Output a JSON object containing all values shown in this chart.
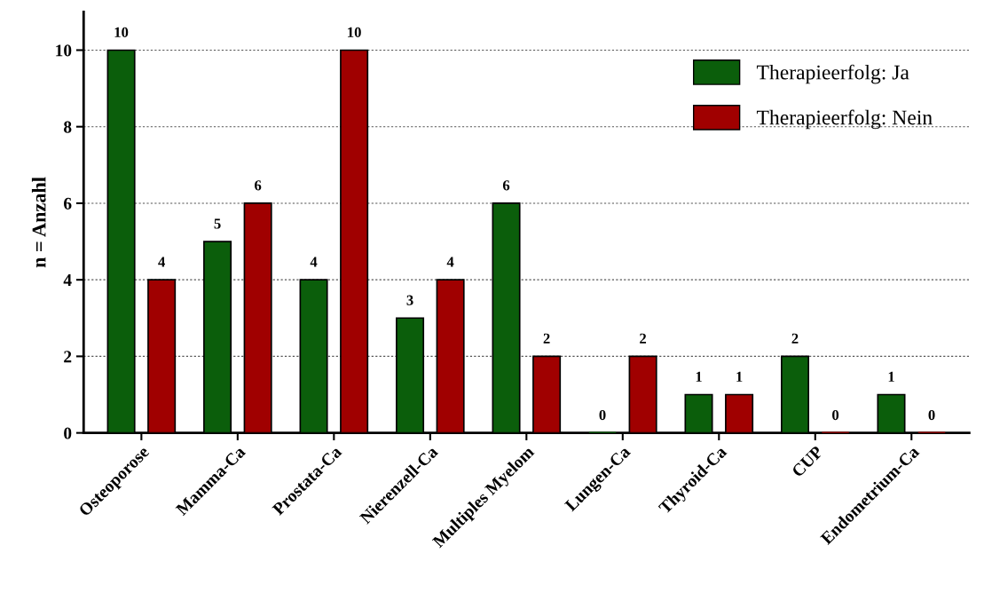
{
  "chart_data": {
    "type": "bar",
    "ylabel": "n = Anzahl",
    "categories": [
      "Osteoporose",
      "Mamma-Ca",
      "Prostata-Ca",
      "Nierenzell-Ca",
      "Multiples Myelom",
      "Lungen-Ca",
      "Thyroid-Ca",
      "CUP",
      "Endometrium-Ca"
    ],
    "series": [
      {
        "name": "Therapieerfolg: Ja",
        "color": "#0b5e0b",
        "values": [
          10,
          5,
          4,
          3,
          6,
          0,
          1,
          2,
          1
        ]
      },
      {
        "name": "Therapieerfolg: Nein",
        "color": "#a00000",
        "values": [
          4,
          6,
          10,
          4,
          2,
          2,
          1,
          0,
          0
        ]
      }
    ],
    "ylim": [
      0,
      11
    ],
    "yticks": [
      0,
      2,
      4,
      6,
      8,
      10
    ],
    "grid": "y",
    "legend": "top right",
    "data_labels": true
  }
}
